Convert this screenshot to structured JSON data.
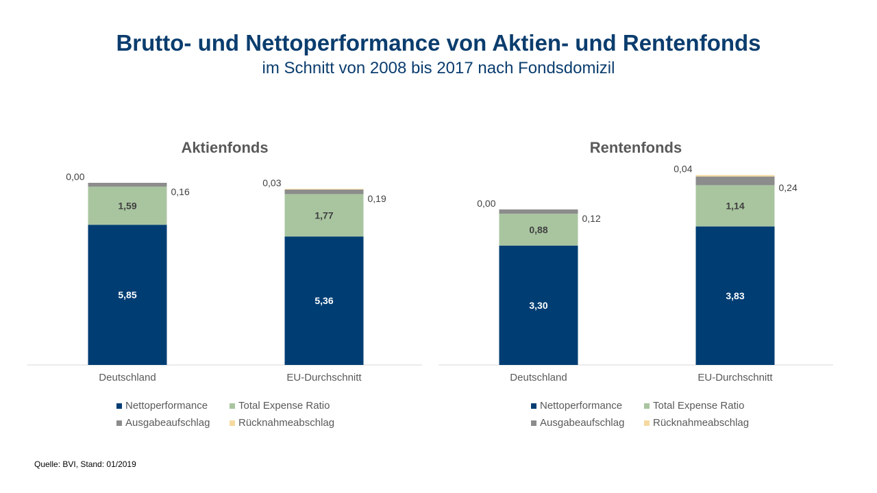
{
  "title": "Brutto- und Nettoperformance von Aktien- und Rentenfonds",
  "subtitle": "im Schnitt von 2008 bis 2017 nach Fondsdomizil",
  "source": "Quelle: BVI, Stand: 01/2019",
  "colors": {
    "Nettoperformance": "#003d73",
    "Total Expense Ratio": "#a9c5a0",
    "Ausgabeaufschlag": "#8c8c8c",
    "Rücknahmeabschlag": "#f5d9a0"
  },
  "legend": [
    "Nettoperformance",
    "Total Expense Ratio",
    "Ausgabeaufschlag",
    "Rücknahmeabschlag"
  ],
  "chart_data": [
    {
      "type": "bar",
      "stacked": true,
      "title": "Aktienfonds",
      "categories": [
        "Deutschland",
        "EU-Durchschnitt"
      ],
      "series": [
        {
          "name": "Nettoperformance",
          "values": [
            5.85,
            5.36
          ],
          "labels": [
            "5,85",
            "5,36"
          ]
        },
        {
          "name": "Total Expense Ratio",
          "values": [
            1.59,
            1.77
          ],
          "labels": [
            "1,59",
            "1,77"
          ]
        },
        {
          "name": "Ausgabeaufschlag",
          "values": [
            0.16,
            0.19
          ],
          "labels": [
            "0,16",
            "0,19"
          ]
        },
        {
          "name": "Rücknahmeabschlag",
          "values": [
            0.0,
            0.03
          ],
          "labels": [
            "0,00",
            "0,03"
          ]
        }
      ],
      "ylim": [
        0,
        8
      ]
    },
    {
      "type": "bar",
      "stacked": true,
      "title": "Rentenfonds",
      "categories": [
        "Deutschland",
        "EU-Durchschnitt"
      ],
      "series": [
        {
          "name": "Nettoperformance",
          "values": [
            3.3,
            3.83
          ],
          "labels": [
            "3,30",
            "3,83"
          ]
        },
        {
          "name": "Total Expense Ratio",
          "values": [
            0.88,
            1.14
          ],
          "labels": [
            "0,88",
            "1,14"
          ]
        },
        {
          "name": "Ausgabeaufschlag",
          "values": [
            0.12,
            0.24
          ],
          "labels": [
            "0,12",
            "0,24"
          ]
        },
        {
          "name": "Rücknahmeabschlag",
          "values": [
            0.0,
            0.04
          ],
          "labels": [
            "0,00",
            "0,04"
          ]
        }
      ],
      "ylim": [
        0,
        5.3
      ]
    }
  ]
}
